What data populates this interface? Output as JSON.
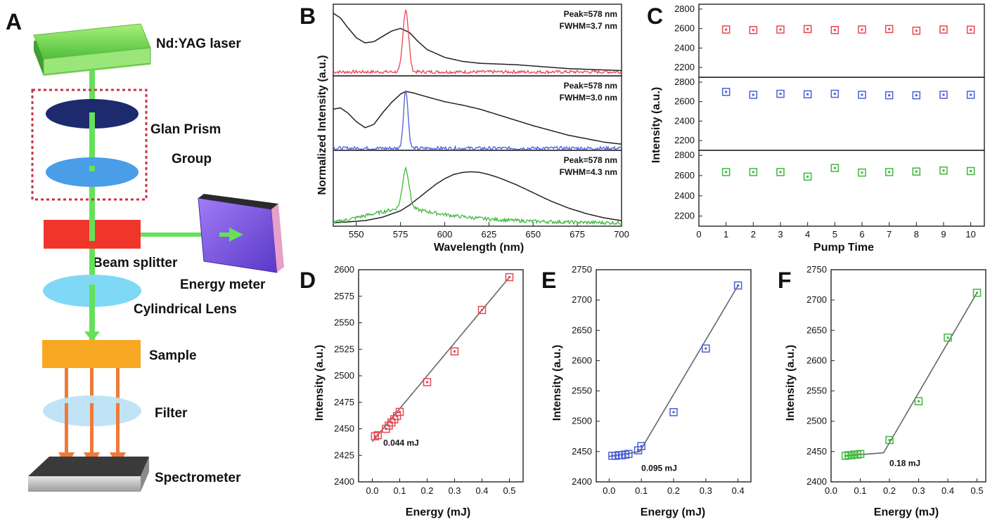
{
  "panel_letters": [
    "A",
    "B",
    "C",
    "D",
    "E",
    "F"
  ],
  "schematic": {
    "labels": {
      "laser": "Nd:YAG laser",
      "glan1": "Glan Prism",
      "glan2": "Group",
      "splitter": "Beam splitter",
      "meter": "Energy meter",
      "lens": "Cylindrical Lens",
      "sample": "Sample",
      "filter": "Filter",
      "spectrometer": "Spectrometer"
    },
    "colors": {
      "laser": "#7ed957",
      "beam": "#66e05a",
      "prism_top": "#1e2a6e",
      "prism_bottom": "#4a9ee8",
      "splitter": "#f0362a",
      "meter": "#8a5cf0",
      "lens": "#7fd8f5",
      "sample": "#f7a823",
      "filter": "#bde3f5",
      "output_beam": "#f07a3a",
      "group_box": "#c8324a"
    }
  },
  "chart_data": [
    {
      "id": "B",
      "type": "line",
      "xlabel": "Wavelength (nm)",
      "ylabel": "Normalized Intensity (a.u.)",
      "xlim": [
        537,
        700
      ],
      "xticks": [
        550,
        575,
        600,
        625,
        650,
        675,
        700
      ],
      "subplots": [
        {
          "annotation": [
            "Peak=578 nm",
            "FWHM=3.7 nm"
          ],
          "peak": 578,
          "fwhm": 3.7,
          "absorption": {
            "name": "",
            "color": "#222222",
            "x": [
              537,
              541,
              545,
              550,
              555,
              560,
              565,
              570,
              575,
              580,
              585,
              590,
              600,
              610,
              620,
              630,
              640,
              650,
              660,
              670,
              680,
              690,
              700
            ],
            "y": [
              0.95,
              0.88,
              0.74,
              0.58,
              0.5,
              0.52,
              0.6,
              0.68,
              0.72,
              0.66,
              0.52,
              0.4,
              0.28,
              0.22,
              0.19,
              0.18,
              0.17,
              0.15,
              0.13,
              0.11,
              0.1,
              0.09,
              0.08
            ]
          },
          "emission": {
            "name": "",
            "color": "#e8464f",
            "baseline": 0.06,
            "peak_height": 0.95
          }
        },
        {
          "annotation": [
            "Peak=578 nm",
            "FWHM=3.0 nm"
          ],
          "peak": 578,
          "fwhm": 3.0,
          "absorption": {
            "name": "",
            "color": "#222222",
            "x": [
              537,
              541,
              545,
              550,
              555,
              560,
              565,
              570,
              575,
              578,
              582,
              590,
              600,
              610,
              620,
              630,
              640,
              650,
              660,
              670,
              680,
              690,
              700
            ],
            "y": [
              0.6,
              0.62,
              0.55,
              0.42,
              0.33,
              0.38,
              0.55,
              0.7,
              0.82,
              0.86,
              0.84,
              0.78,
              0.71,
              0.66,
              0.6,
              0.52,
              0.44,
              0.36,
              0.29,
              0.22,
              0.17,
              0.12,
              0.09
            ]
          },
          "emission": {
            "name": "",
            "color": "#4a5fd6",
            "baseline": 0.03,
            "peak_height": 0.85
          }
        },
        {
          "annotation": [
            "Peak=578 nm",
            "FWHM=4.3 nm"
          ],
          "peak": 578,
          "fwhm": 4.3,
          "absorption": {
            "name": "",
            "color": "#222222",
            "x": [
              537,
              545,
              555,
              565,
              575,
              580,
              585,
              590,
              595,
              600,
              605,
              610,
              615,
              620,
              625,
              630,
              640,
              650,
              660,
              670,
              680,
              690,
              700
            ],
            "y": [
              0.05,
              0.06,
              0.08,
              0.13,
              0.22,
              0.3,
              0.4,
              0.5,
              0.6,
              0.68,
              0.74,
              0.77,
              0.78,
              0.77,
              0.74,
              0.7,
              0.6,
              0.48,
              0.36,
              0.26,
              0.18,
              0.12,
              0.08
            ]
          },
          "emission": {
            "name": "",
            "color": "#3fb83c",
            "baseline_start": 0.05,
            "baseline_peak": 0.28,
            "baseline_end": 0.04,
            "peak_height": 0.55
          }
        }
      ]
    },
    {
      "id": "C",
      "type": "scatter",
      "xlabel": "Pump Time",
      "ylabel": "Intensity (a.u.)",
      "xlim": [
        0,
        10.5
      ],
      "xticks": [
        0,
        1,
        2,
        3,
        4,
        5,
        6,
        7,
        8,
        9,
        10
      ],
      "ylim": [
        2100,
        2850
      ],
      "yticks": [
        2200,
        2400,
        2600,
        2800
      ],
      "series": [
        {
          "color": "#e8464f",
          "x": [
            1,
            2,
            3,
            4,
            5,
            6,
            7,
            8,
            9,
            10
          ],
          "values": [
            2590,
            2585,
            2590,
            2595,
            2585,
            2590,
            2595,
            2578,
            2590,
            2588
          ]
        },
        {
          "color": "#4a5fd6",
          "x": [
            1,
            2,
            3,
            4,
            5,
            6,
            7,
            8,
            9,
            10
          ],
          "values": [
            2700,
            2670,
            2680,
            2675,
            2680,
            2670,
            2665,
            2665,
            2670,
            2670
          ]
        },
        {
          "color": "#3fb83c",
          "x": [
            1,
            2,
            3,
            4,
            5,
            6,
            7,
            8,
            9,
            10
          ],
          "values": [
            2635,
            2635,
            2635,
            2590,
            2675,
            2630,
            2635,
            2640,
            2650,
            2645
          ]
        }
      ]
    },
    {
      "id": "D",
      "type": "scatter",
      "xlabel": "Energy (mJ)",
      "ylabel": "Intensity (a.u.)",
      "xlim": [
        -0.05,
        0.55
      ],
      "xticks": [
        0.0,
        0.1,
        0.2,
        0.3,
        0.4,
        0.5
      ],
      "xtick_labels": [
        "0.0",
        "0.1",
        "0.2",
        "0.3",
        "0.4",
        "0.5"
      ],
      "ylim": [
        2400,
        2600
      ],
      "yticks": [
        2400,
        2425,
        2450,
        2475,
        2500,
        2525,
        2550,
        2575,
        2600
      ],
      "color": "#e8464f",
      "annotation": "0.044 mJ",
      "annotation_at": [
        0.04,
        2434
      ],
      "x": [
        0.01,
        0.02,
        0.05,
        0.06,
        0.07,
        0.08,
        0.09,
        0.1,
        0.2,
        0.3,
        0.4,
        0.5
      ],
      "values": [
        2443,
        2444,
        2450,
        2453,
        2456,
        2459,
        2462,
        2466,
        2494,
        2523,
        2562,
        2593
      ],
      "fit": [
        [
          0.0,
          2438
        ],
        [
          0.5,
          2593
        ]
      ]
    },
    {
      "id": "E",
      "type": "scatter",
      "xlabel": "Energy (mJ)",
      "ylabel": "Intensity (a.u.)",
      "xlim": [
        -0.04,
        0.44
      ],
      "xticks": [
        0.0,
        0.1,
        0.2,
        0.3,
        0.4
      ],
      "xtick_labels": [
        "0.0",
        "0.1",
        "0.2",
        "0.3",
        "0.4"
      ],
      "ylim": [
        2400,
        2750
      ],
      "yticks": [
        2400,
        2450,
        2500,
        2550,
        2600,
        2650,
        2700,
        2750
      ],
      "color": "#4a5fd6",
      "annotation": "0.095 mJ",
      "annotation_at": [
        0.1,
        2418
      ],
      "x": [
        0.01,
        0.02,
        0.03,
        0.04,
        0.05,
        0.06,
        0.09,
        0.1,
        0.2,
        0.3,
        0.4
      ],
      "values": [
        2443,
        2443,
        2444,
        2444,
        2445,
        2446,
        2452,
        2459,
        2515,
        2620,
        2724
      ],
      "fit": [
        [
          0.0,
          2442
        ],
        [
          0.095,
          2450
        ],
        [
          0.4,
          2724
        ]
      ]
    },
    {
      "id": "F",
      "type": "scatter",
      "xlabel": "Energy (mJ)",
      "ylabel": "Intensity (a.u.)",
      "xlim": [
        0.0,
        0.53
      ],
      "xticks": [
        0.0,
        0.1,
        0.2,
        0.3,
        0.4,
        0.5
      ],
      "xtick_labels": [
        "0.0",
        "0.1",
        "0.2",
        "0.3",
        "0.4",
        "0.5"
      ],
      "ylim": [
        2400,
        2750
      ],
      "yticks": [
        2400,
        2450,
        2500,
        2550,
        2600,
        2650,
        2700,
        2750
      ],
      "color": "#3fb83c",
      "annotation": "0.18 mJ",
      "annotation_at": [
        0.2,
        2426
      ],
      "x": [
        0.05,
        0.06,
        0.07,
        0.08,
        0.09,
        0.1,
        0.2,
        0.3,
        0.4,
        0.5
      ],
      "values": [
        2443,
        2444,
        2444,
        2445,
        2445,
        2446,
        2469,
        2533,
        2638,
        2712
      ],
      "fit": [
        [
          0.05,
          2443
        ],
        [
          0.18,
          2448
        ],
        [
          0.5,
          2712
        ]
      ]
    }
  ]
}
